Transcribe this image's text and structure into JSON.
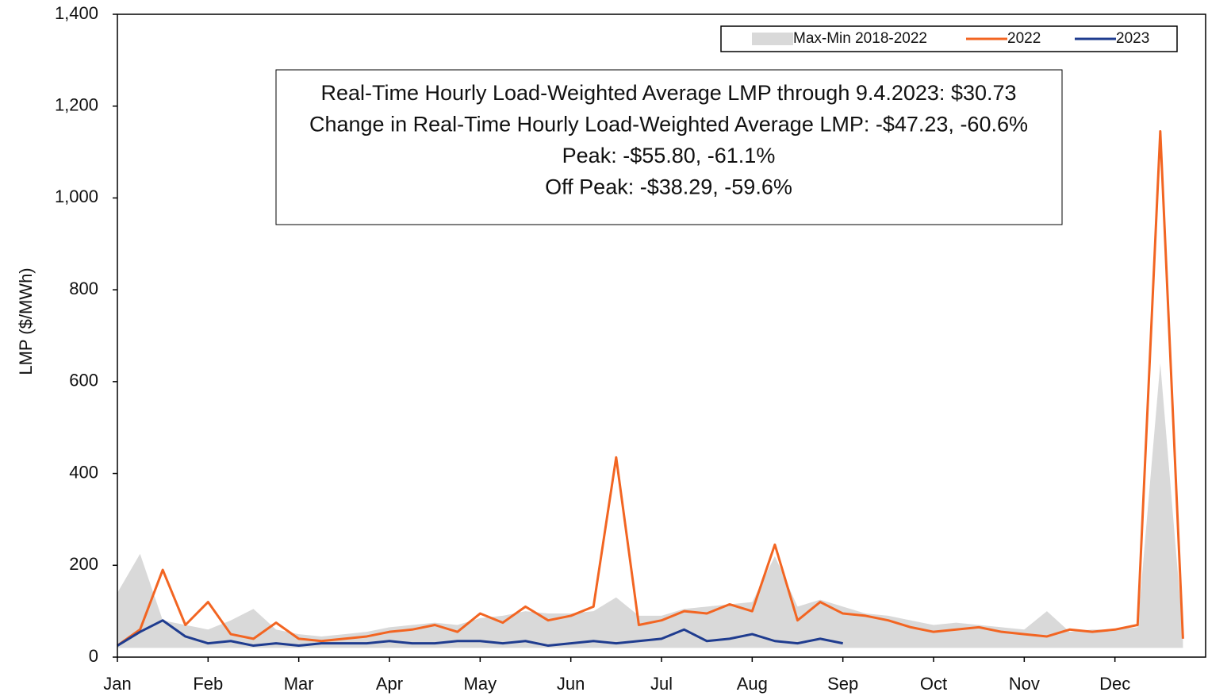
{
  "chart_data": {
    "type": "line",
    "y_label": "LMP ($/MWh)",
    "categories": [
      "Jan",
      null,
      null,
      null,
      "Feb",
      null,
      null,
      null,
      "Mar",
      null,
      null,
      null,
      "Apr",
      null,
      null,
      null,
      "May",
      null,
      null,
      null,
      "Jun",
      null,
      null,
      null,
      "Jul",
      null,
      null,
      null,
      "Aug",
      null,
      null,
      null,
      "Sep",
      null,
      null,
      null,
      "Oct",
      null,
      null,
      null,
      "Nov",
      null,
      null,
      null,
      "Dec",
      null,
      null,
      null
    ],
    "series": [
      {
        "name": "Max-Min 2018-2022",
        "color": "#d9d9d9",
        "values": [
          140,
          225,
          80,
          70,
          60,
          80,
          105,
          60,
          50,
          45,
          50,
          55,
          65,
          70,
          75,
          70,
          85,
          90,
          100,
          95,
          95,
          100,
          130,
          90,
          90,
          105,
          110,
          115,
          120,
          220,
          110,
          125,
          110,
          95,
          90,
          80,
          70,
          75,
          70,
          65,
          60,
          100,
          55,
          60,
          60,
          65,
          640,
          50
        ],
        "lows": [
          20,
          20,
          20,
          20,
          20,
          20,
          20,
          20,
          20,
          20,
          20,
          20,
          20,
          20,
          20,
          20,
          20,
          20,
          20,
          20,
          20,
          20,
          20,
          20,
          20,
          20,
          20,
          20,
          20,
          20,
          20,
          20,
          20,
          20,
          20,
          20,
          20,
          20,
          20,
          20,
          20,
          20,
          20,
          20,
          20,
          20,
          20,
          20
        ]
      },
      {
        "name": "2022",
        "color": "#f26522",
        "values": [
          25,
          60,
          190,
          70,
          120,
          50,
          40,
          75,
          40,
          35,
          40,
          45,
          55,
          60,
          70,
          55,
          95,
          75,
          110,
          80,
          90,
          110,
          435,
          70,
          80,
          100,
          95,
          115,
          100,
          245,
          80,
          120,
          95,
          90,
          80,
          65,
          55,
          60,
          65,
          55,
          50,
          45,
          60,
          55,
          60,
          70,
          1145,
          40
        ]
      },
      {
        "name": "2023",
        "color": "#1f3c8f",
        "values": [
          25,
          55,
          80,
          45,
          30,
          35,
          25,
          30,
          25,
          30,
          30,
          30,
          35,
          30,
          30,
          35,
          35,
          30,
          35,
          25,
          30,
          35,
          30,
          35,
          40,
          60,
          35,
          40,
          50,
          35,
          30,
          40,
          30,
          null,
          null,
          null,
          null,
          null,
          null,
          null,
          null,
          null,
          null,
          null,
          null,
          null,
          null,
          null
        ]
      }
    ],
    "ylim": [
      0,
      1400
    ],
    "yticks": [
      0,
      200,
      400,
      600,
      800,
      {
        "value": 1000,
        "label": "1,000"
      },
      {
        "value": 1200,
        "label": "1,200"
      },
      {
        "value": 1400,
        "label": "1,400"
      }
    ],
    "annotations": [
      "Real-Time Hourly Load-Weighted Average LMP through 9.4.2023: $30.73",
      "Change in Real-Time Hourly Load-Weighted Average LMP: -$47.23, -60.6%",
      "Peak: -$55.80, -61.1%",
      "Off Peak: -$38.29, -59.6%"
    ]
  }
}
